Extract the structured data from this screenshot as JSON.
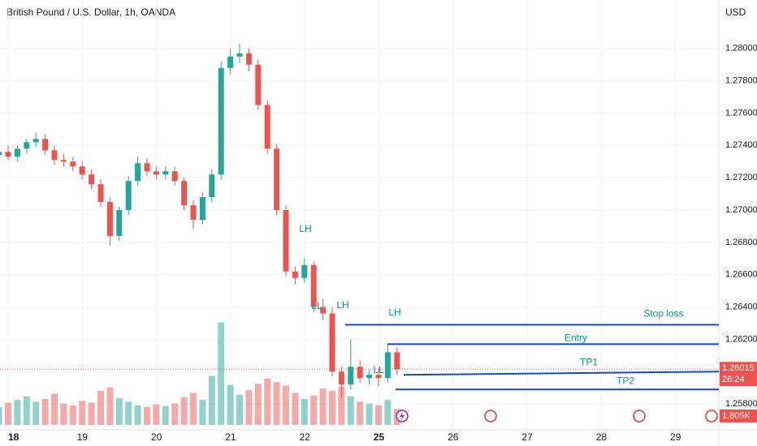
{
  "chart_data": {
    "type": "candlestick",
    "title": "British Pound / U.S. Dollar, 1h, OANDA",
    "currency": "USD",
    "ylim": [
      1.2564,
      1.283
    ],
    "yticks": [
      {
        "value": 1.258,
        "label": "1.25800"
      },
      {
        "value": 1.26,
        "label": "1.26000"
      },
      {
        "value": 1.262,
        "label": "1.26200"
      },
      {
        "value": 1.264,
        "label": "1.26400"
      },
      {
        "value": 1.266,
        "label": "1.26600"
      },
      {
        "value": 1.268,
        "label": "1.26800"
      },
      {
        "value": 1.27,
        "label": "1.27000"
      },
      {
        "value": 1.272,
        "label": "1.27200"
      },
      {
        "value": 1.274,
        "label": "1.27400"
      },
      {
        "value": 1.276,
        "label": "1.27600"
      },
      {
        "value": 1.278,
        "label": "1.27800"
      },
      {
        "value": 1.28,
        "label": "1.28000"
      }
    ],
    "xticks": [
      "18",
      "19",
      "20",
      "21",
      "22",
      "25",
      "26",
      "27",
      "28",
      "29"
    ],
    "up_color": "#26a69a",
    "down_color": "#ef5350",
    "open": [
      1.2734,
      1.2736,
      1.2733,
      1.2738,
      1.2742,
      1.2744,
      1.2737,
      1.2731,
      1.273,
      1.2727,
      1.2722,
      1.2716,
      1.2705,
      1.2684,
      1.27,
      1.2718,
      1.2729,
      1.2724,
      1.2722,
      1.2724,
      1.2718,
      1.2703,
      1.2694,
      1.2708,
      1.2722,
      1.2788,
      1.2795,
      1.2797,
      1.279,
      1.2765,
      1.2738,
      1.27,
      1.2662,
      1.2658,
      1.2666,
      1.264,
      1.2636,
      1.26,
      1.2592,
      1.2603,
      1.2596,
      1.2598,
      1.2596,
      1.2612
    ],
    "high": [
      1.2739,
      1.274,
      1.274,
      1.2744,
      1.2748,
      1.2747,
      1.274,
      1.2735,
      1.2733,
      1.273,
      1.2725,
      1.2719,
      1.2708,
      1.2702,
      1.2721,
      1.2733,
      1.2732,
      1.2727,
      1.2727,
      1.2727,
      1.272,
      1.2706,
      1.2711,
      1.2725,
      1.2792,
      1.28,
      1.2803,
      1.28,
      1.2793,
      1.2768,
      1.2741,
      1.2703,
      1.2665,
      1.267,
      1.2668,
      1.2645,
      1.264,
      1.2603,
      1.262,
      1.2607,
      1.2601,
      1.2602,
      1.2617,
      1.2615
    ],
    "low": [
      1.273,
      1.2731,
      1.273,
      1.2735,
      1.2739,
      1.2734,
      1.2728,
      1.2727,
      1.2724,
      1.2719,
      1.2713,
      1.2702,
      1.2678,
      1.2681,
      1.2697,
      1.2715,
      1.2721,
      1.2719,
      1.2719,
      1.2715,
      1.27,
      1.2688,
      1.2691,
      1.2705,
      1.2719,
      1.2784,
      1.2791,
      1.2786,
      1.2762,
      1.2735,
      1.2697,
      1.2659,
      1.2654,
      1.2655,
      1.2637,
      1.2632,
      1.2597,
      1.2584,
      1.2589,
      1.2593,
      1.2592,
      1.2591,
      1.2593,
      1.2598
    ],
    "close": [
      1.2736,
      1.2733,
      1.2738,
      1.2742,
      1.2744,
      1.2737,
      1.2731,
      1.273,
      1.2727,
      1.2722,
      1.2716,
      1.2705,
      1.2684,
      1.27,
      1.2718,
      1.2729,
      1.2724,
      1.2722,
      1.2724,
      1.2718,
      1.2703,
      1.2694,
      1.2708,
      1.2722,
      1.2788,
      1.2795,
      1.2797,
      1.279,
      1.2765,
      1.2738,
      1.27,
      1.2662,
      1.2658,
      1.2666,
      1.264,
      1.2636,
      1.26,
      1.2592,
      1.2603,
      1.2596,
      1.2598,
      1.2596,
      1.2612,
      1.26015
    ],
    "volume": [
      2,
      2.5,
      2.8,
      3.2,
      2.6,
      2.9,
      3.5,
      2.4,
      2.2,
      2.7,
      2.5,
      3.8,
      4.2,
      3,
      2.6,
      2.2,
      2,
      2.3,
      2.1,
      2.4,
      3.1,
      3.6,
      2.8,
      5.5,
      11.5,
      4.5,
      3.4,
      3.9,
      4.6,
      5.2,
      4.8,
      4.4,
      3.6,
      2.9,
      3.3,
      4.1,
      3.8,
      4.3,
      3.2,
      2.6,
      2.4,
      2.2,
      2.8,
      1.805
    ],
    "last_volume_label": "1.805K",
    "countdown": "26:24",
    "annotations": [
      "LH",
      "LL",
      "LH",
      "LH",
      "LL"
    ],
    "levels": [
      {
        "name": "Stop loss",
        "start": 1.2629,
        "end": 1.2629
      },
      {
        "name": "Entry",
        "start": 1.2617,
        "end": 1.2617
      },
      {
        "name": "TP1",
        "start": 1.2598,
        "end": 1.26
      },
      {
        "name": "TP2",
        "start": 1.2589,
        "end": 1.2589
      }
    ]
  }
}
